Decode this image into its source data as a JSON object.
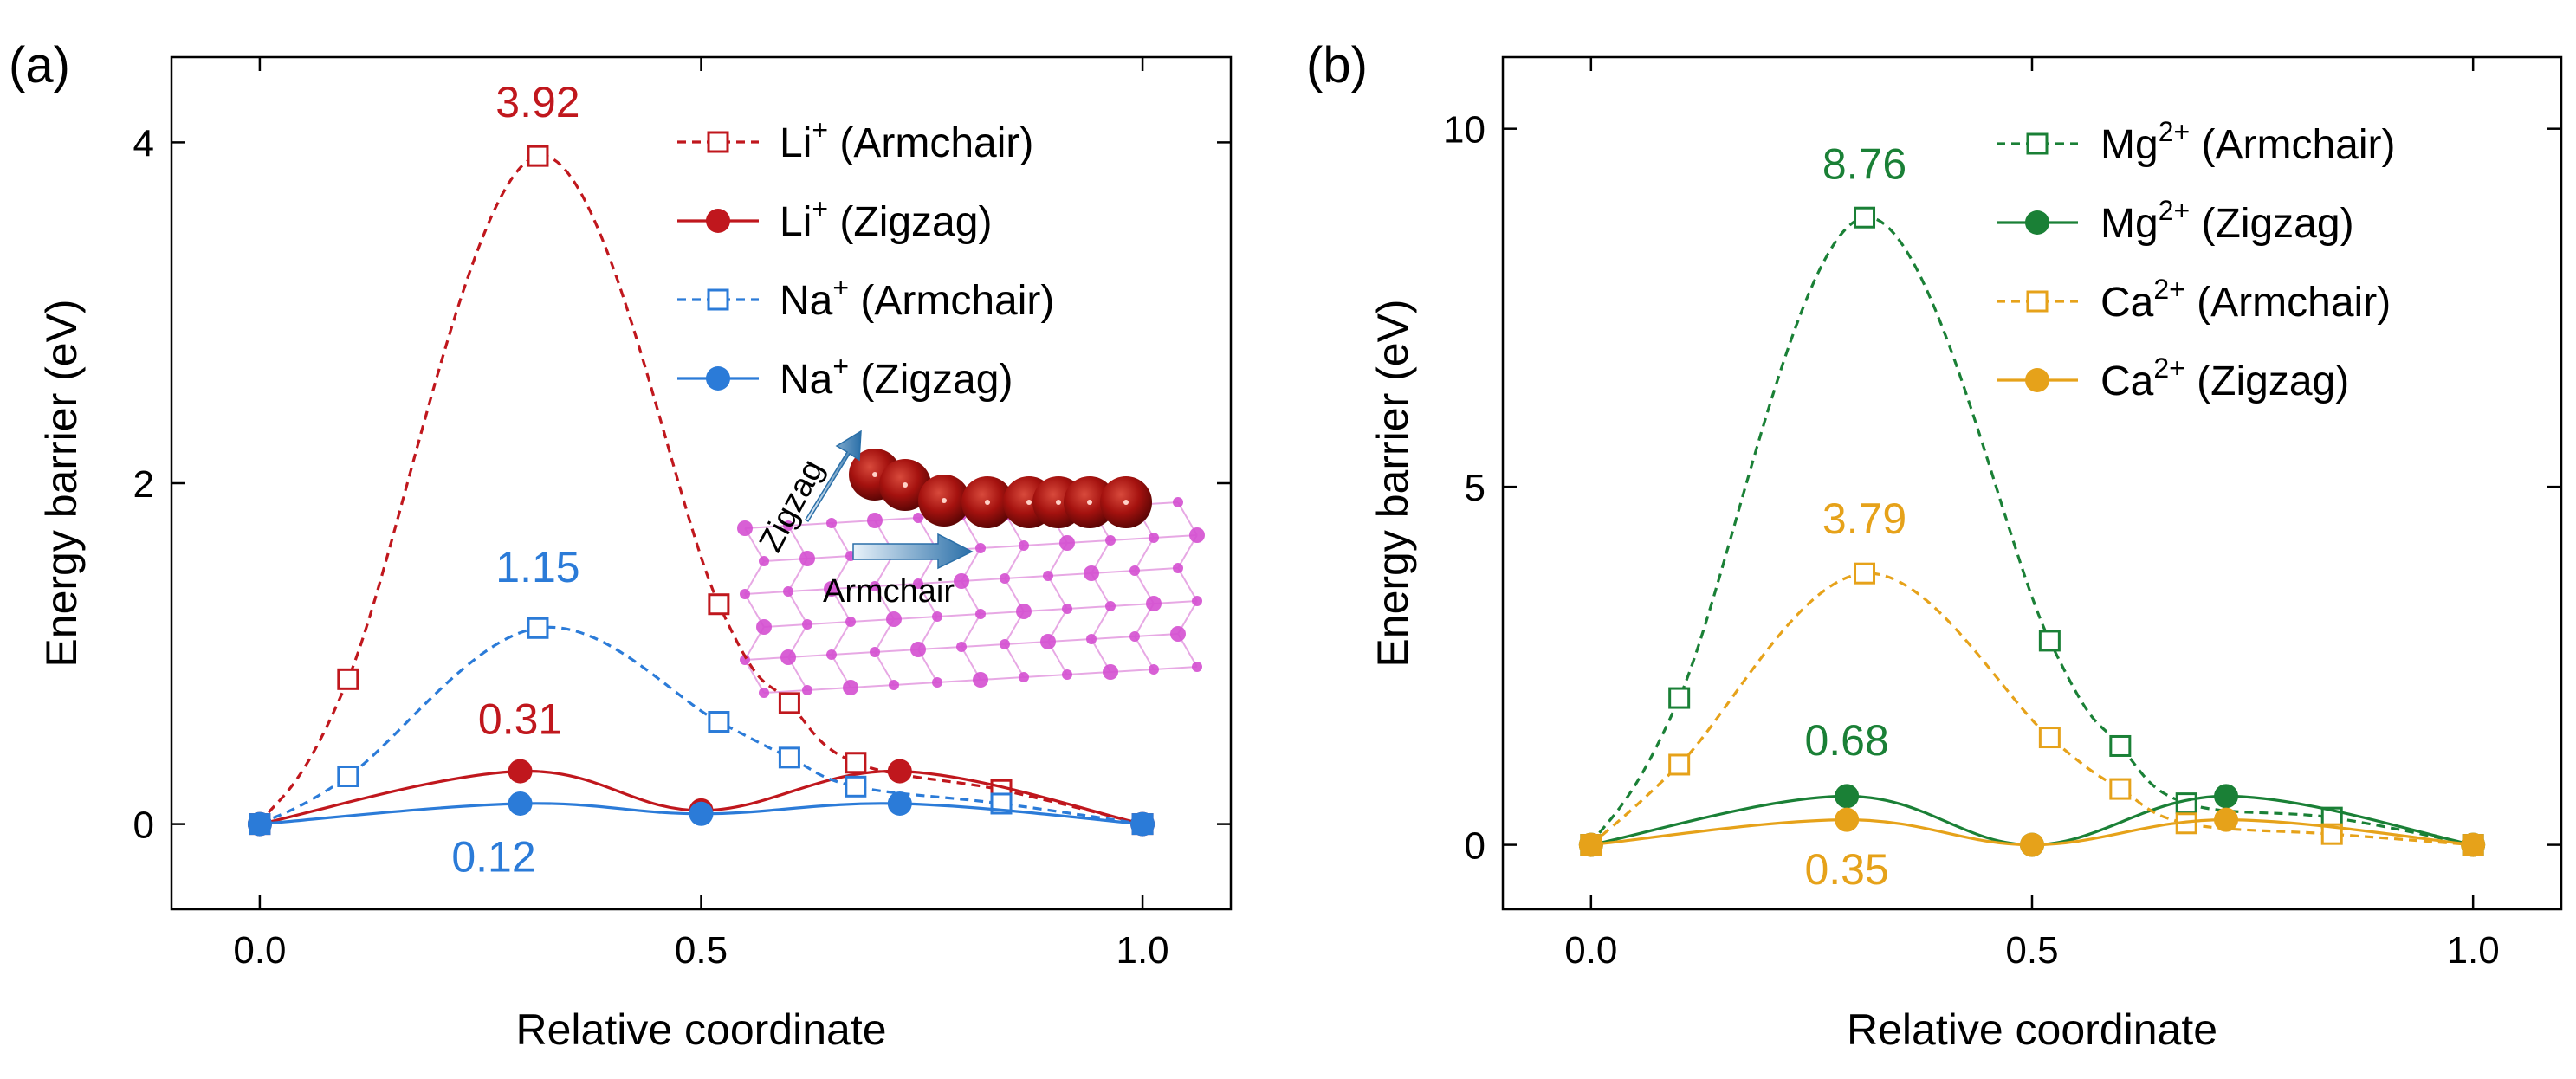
{
  "chart_data": [
    {
      "type": "line",
      "panel_label": "(a)",
      "xlabel": "Relative coordinate",
      "ylabel": "Energy barrier (eV)",
      "xlim": [
        -0.1,
        1.1
      ],
      "ylim": [
        -0.5,
        4.5
      ],
      "xticks": [
        0.0,
        0.5,
        1.0
      ],
      "xtick_labels": [
        "0.0",
        "0.5",
        "1.0"
      ],
      "yticks": [
        0,
        2,
        4
      ],
      "ytick_labels": [
        "0",
        "2",
        "4"
      ],
      "legend_position": "top-right",
      "series": [
        {
          "name": "Li",
          "sup": "+",
          "suffix": " (Armchair)",
          "color": "#c0171d",
          "dashed": true,
          "marker": "open-square",
          "x": [
            0.0,
            0.1,
            0.315,
            0.52,
            0.6,
            0.675,
            0.84,
            1.0
          ],
          "y": [
            0.0,
            0.85,
            3.92,
            1.29,
            0.71,
            0.36,
            0.2,
            0.0
          ]
        },
        {
          "name": "Li",
          "sup": "+",
          "suffix": " (Zigzag)",
          "color": "#c0171d",
          "dashed": false,
          "marker": "filled-circle",
          "x": [
            0.0,
            0.295,
            0.5,
            0.725,
            1.0
          ],
          "y": [
            0.0,
            0.31,
            0.08,
            0.31,
            0.0
          ]
        },
        {
          "name": "Na",
          "sup": "+",
          "suffix": " (Armchair)",
          "color": "#2b7bd8",
          "dashed": true,
          "marker": "open-square",
          "x": [
            0.0,
            0.1,
            0.315,
            0.52,
            0.6,
            0.675,
            0.84,
            1.0
          ],
          "y": [
            0.0,
            0.28,
            1.15,
            0.6,
            0.39,
            0.22,
            0.12,
            0.0
          ]
        },
        {
          "name": "Na",
          "sup": "+",
          "suffix": " (Zigzag)",
          "color": "#2b7bd8",
          "dashed": false,
          "marker": "filled-circle",
          "x": [
            0.0,
            0.295,
            0.5,
            0.725,
            1.0
          ],
          "y": [
            0.0,
            0.12,
            0.06,
            0.12,
            0.0
          ]
        }
      ],
      "annotations": [
        {
          "text": "3.92",
          "x": 0.315,
          "y": 4.15,
          "color": "#c0171d"
        },
        {
          "text": "1.15",
          "x": 0.315,
          "y": 1.42,
          "color": "#2b7bd8"
        },
        {
          "text": "0.31",
          "x": 0.295,
          "y": 0.53,
          "color": "#c0171d"
        },
        {
          "text": "0.12",
          "x": 0.265,
          "y": -0.28,
          "color": "#2b7bd8"
        }
      ],
      "inset": {
        "zigzag_label": "Zigzag",
        "armchair_label": "Armchair"
      }
    },
    {
      "type": "line",
      "panel_label": "(b)",
      "xlabel": "Relative coordinate",
      "ylabel": "Energy barrier (eV)",
      "xlim": [
        -0.1,
        1.1
      ],
      "ylim": [
        -0.9,
        11.0
      ],
      "xticks": [
        0.0,
        0.5,
        1.0
      ],
      "xtick_labels": [
        "0.0",
        "0.5",
        "1.0"
      ],
      "yticks": [
        0,
        5,
        10
      ],
      "ytick_labels": [
        "0",
        "5",
        "10"
      ],
      "legend_position": "top-right",
      "series": [
        {
          "name": "Mg",
          "sup": "2+",
          "suffix": " (Armchair)",
          "color": "#1a8036",
          "dashed": true,
          "marker": "open-square",
          "x": [
            0.0,
            0.1,
            0.31,
            0.52,
            0.6,
            0.675,
            0.84,
            1.0
          ],
          "y": [
            0.0,
            2.05,
            8.76,
            2.85,
            1.38,
            0.58,
            0.38,
            0.0
          ]
        },
        {
          "name": "Mg",
          "sup": "2+",
          "suffix": " (Zigzag)",
          "color": "#1a8036",
          "dashed": false,
          "marker": "filled-circle",
          "x": [
            0.0,
            0.29,
            0.5,
            0.72,
            1.0
          ],
          "y": [
            0.0,
            0.68,
            0.0,
            0.68,
            0.0
          ]
        },
        {
          "name": "Ca",
          "sup": "2+",
          "suffix": " (Armchair)",
          "color": "#e6a21a",
          "dashed": true,
          "marker": "open-square",
          "x": [
            0.0,
            0.1,
            0.31,
            0.52,
            0.6,
            0.675,
            0.84,
            1.0
          ],
          "y": [
            0.0,
            1.12,
            3.79,
            1.5,
            0.78,
            0.3,
            0.15,
            0.0
          ]
        },
        {
          "name": "Ca",
          "sup": "2+",
          "suffix": " (Zigzag)",
          "color": "#e6a21a",
          "dashed": false,
          "marker": "filled-circle",
          "x": [
            0.0,
            0.29,
            0.5,
            0.72,
            1.0
          ],
          "y": [
            0.0,
            0.35,
            0.0,
            0.35,
            0.0
          ]
        }
      ],
      "annotations": [
        {
          "text": "8.76",
          "x": 0.31,
          "y": 9.3,
          "color": "#1a8036"
        },
        {
          "text": "3.79",
          "x": 0.31,
          "y": 4.35,
          "color": "#e6a21a"
        },
        {
          "text": "0.68",
          "x": 0.29,
          "y": 1.25,
          "color": "#1a8036"
        },
        {
          "text": "0.35",
          "x": 0.29,
          "y": -0.55,
          "color": "#e6a21a"
        }
      ]
    }
  ]
}
